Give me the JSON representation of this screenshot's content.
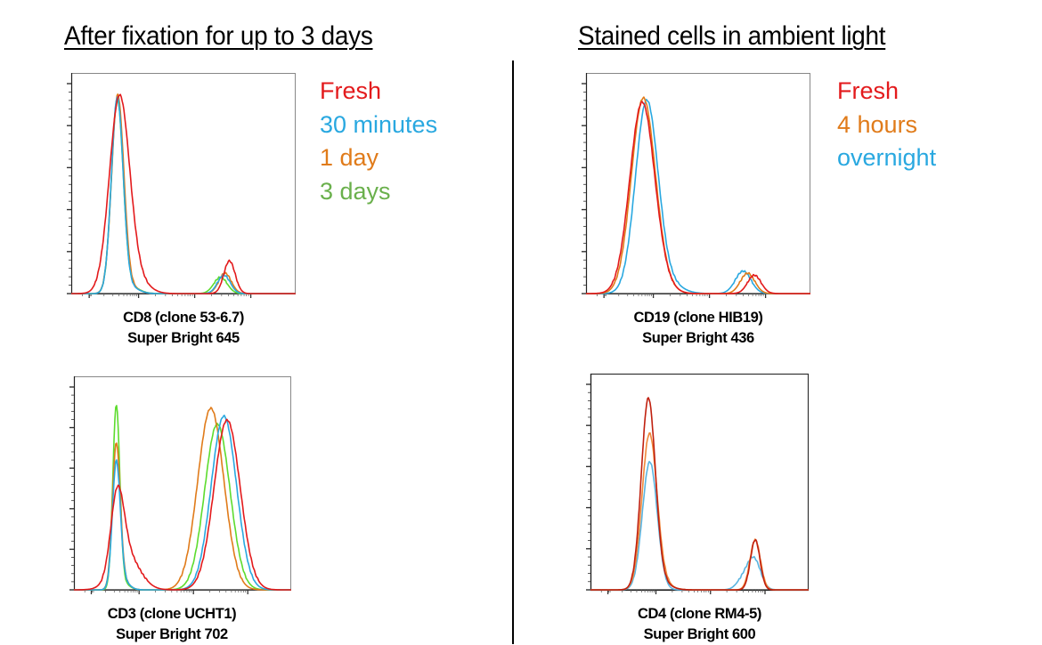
{
  "sections": {
    "left_title": "After fixation for up to 3 days",
    "right_title": "Stained cells in ambient light"
  },
  "legends": {
    "left": [
      {
        "label": "Fresh",
        "color": "#e31a1c"
      },
      {
        "label": "30 minutes",
        "color": "#29a8e0"
      },
      {
        "label": "1 day",
        "color": "#e07b1a"
      },
      {
        "label": "3 days",
        "color": "#6ab04c"
      }
    ],
    "right": [
      {
        "label": "Fresh",
        "color": "#e31a1c"
      },
      {
        "label": "4 hours",
        "color": "#e07b1a"
      },
      {
        "label": "overnight",
        "color": "#29a8e0"
      }
    ]
  },
  "chart_data": [
    {
      "type": "line",
      "id": "cd8",
      "title": "",
      "caption_line1": "CD8 (clone 53-6.7)",
      "caption_line2": "Super Bright 645",
      "xlabel": "CD8 (clone 53-6.7) Super Bright 645",
      "ylabel": "",
      "xscale": "log (arbitrary units 0-1)",
      "xlim": [
        0,
        1
      ],
      "ylim": [
        0,
        1
      ],
      "series": [
        {
          "name": "Fresh",
          "color": "#e31a1c",
          "peaks": [
            [
              0.215,
              0.96,
              0.045
            ],
            [
              0.705,
              0.16,
              0.025
            ]
          ],
          "shoulder": [
            0.3,
            0.05,
            0.05
          ]
        },
        {
          "name": "30 minutes",
          "color": "#29a8e0",
          "peaks": [
            [
              0.205,
              0.95,
              0.026
            ],
            [
              0.68,
              0.09,
              0.028
            ]
          ],
          "shoulder": [
            0.26,
            0.03,
            0.04
          ]
        },
        {
          "name": "1 day",
          "color": "#e07b1a",
          "peaks": [
            [
              0.207,
              0.96,
              0.027
            ],
            [
              0.685,
              0.1,
              0.028
            ]
          ],
          "shoulder": [
            0.26,
            0.03,
            0.04
          ]
        },
        {
          "name": "3 days",
          "color": "#5ddc2e",
          "peaks": [
            [
              0.205,
              0.94,
              0.026
            ],
            [
              0.665,
              0.08,
              0.03
            ]
          ],
          "shoulder": [
            0.26,
            0.035,
            0.04
          ]
        }
      ]
    },
    {
      "type": "line",
      "id": "cd19",
      "title": "",
      "caption_line1": "CD19 (clone HIB19)",
      "caption_line2": "Super Bright 436",
      "xlabel": "CD19 (clone HIB19) Super Bright 436",
      "ylabel": "",
      "xscale": "log (arbitrary units 0-1)",
      "xlim": [
        0,
        1
      ],
      "ylim": [
        0,
        1
      ],
      "series": [
        {
          "name": "Fresh",
          "color": "#e31a1c",
          "peaks": [
            [
              0.25,
              0.93,
              0.055
            ],
            [
              0.75,
              0.09,
              0.03
            ]
          ],
          "shoulder": [
            0.34,
            0.03,
            0.05
          ]
        },
        {
          "name": "4 hours",
          "color": "#e07b1a",
          "peaks": [
            [
              0.255,
              0.95,
              0.053
            ],
            [
              0.72,
              0.1,
              0.032
            ]
          ],
          "shoulder": [
            0.34,
            0.03,
            0.05
          ]
        },
        {
          "name": "overnight",
          "color": "#29a8e0",
          "peaks": [
            [
              0.27,
              0.93,
              0.05
            ],
            [
              0.7,
              0.11,
              0.035
            ]
          ],
          "shoulder": [
            0.36,
            0.05,
            0.06
          ]
        }
      ]
    },
    {
      "type": "line",
      "id": "cd3",
      "title": "",
      "caption_line1": "CD3 (clone UCHT1)",
      "caption_line2": "Super Bright 702",
      "xlabel": "CD3 (clone UCHT1) Super Bright 702",
      "ylabel": "",
      "xscale": "log (arbitrary units 0-1)",
      "xlim": [
        0,
        1
      ],
      "ylim": [
        0,
        1
      ],
      "series": [
        {
          "name": "Fresh",
          "color": "#e31a1c",
          "peaks": [
            [
              0.2,
              0.38,
              0.03
            ],
            [
              0.705,
              0.86,
              0.06
            ]
          ],
          "shoulder": [
            0.24,
            0.18,
            0.06
          ]
        },
        {
          "name": "30 minutes",
          "color": "#29a8e0",
          "peaks": [
            [
              0.195,
              0.62,
              0.018
            ],
            [
              0.69,
              0.88,
              0.058
            ]
          ],
          "shoulder": [
            0.22,
            0.05,
            0.03
          ]
        },
        {
          "name": "1 day",
          "color": "#e07b1a",
          "peaks": [
            [
              0.195,
              0.71,
              0.018
            ],
            [
              0.63,
              0.92,
              0.06
            ]
          ],
          "shoulder": [
            0.22,
            0.05,
            0.03
          ]
        },
        {
          "name": "3 days",
          "color": "#5ddc2e",
          "peaks": [
            [
              0.195,
              0.91,
              0.016
            ],
            [
              0.66,
              0.84,
              0.058
            ]
          ],
          "shoulder": [
            0.22,
            0.04,
            0.03
          ]
        }
      ]
    },
    {
      "type": "line",
      "id": "cd4",
      "title": "",
      "caption_line1": "CD4 (clone RM4-5)",
      "caption_line2": "Super Bright 600",
      "xlabel": "CD4 (clone RM4-5) Super Bright 600",
      "ylabel": "",
      "xscale": "log (arbitrary units 0-1)",
      "xlim": [
        0,
        1
      ],
      "ylim": [
        0,
        1
      ],
      "series": [
        {
          "name": "Fresh",
          "color": "#c0200f",
          "peaks": [
            [
              0.265,
              0.92,
              0.032
            ],
            [
              0.755,
              0.25,
              0.022
            ]
          ],
          "shoulder": [
            0.3,
            0.05,
            0.05
          ]
        },
        {
          "name": "4 hours",
          "color": "#f0883a",
          "peaks": [
            [
              0.27,
              0.74,
              0.034
            ],
            [
              0.755,
              0.25,
              0.024
            ]
          ],
          "shoulder": [
            0.3,
            0.05,
            0.05
          ]
        },
        {
          "name": "overnight",
          "color": "#5ab4e0",
          "peaks": [
            [
              0.272,
              0.64,
              0.034
            ],
            [
              0.75,
              0.15,
              0.03
            ]
          ],
          "shoulder": [
            0.7,
            0.05,
            0.03
          ]
        }
      ]
    }
  ]
}
